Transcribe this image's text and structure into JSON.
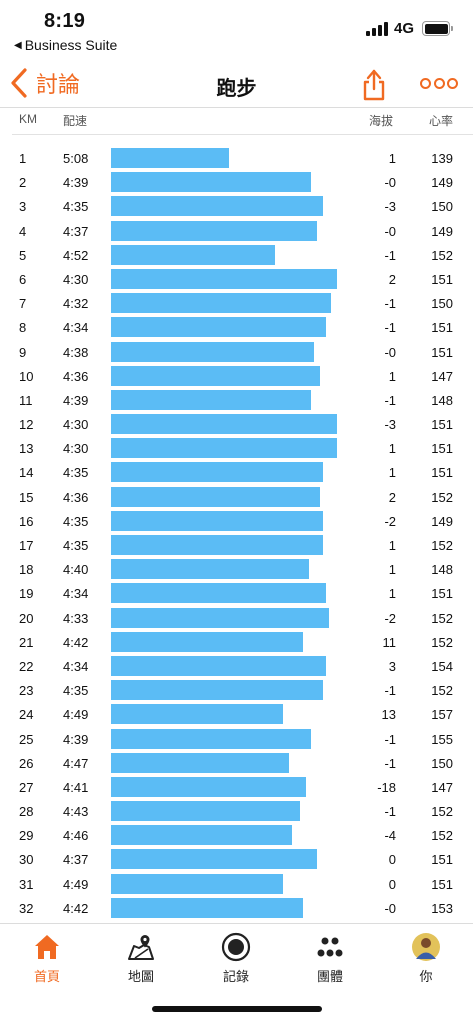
{
  "status_bar": {
    "time": "8:19",
    "back_app": "Business Suite",
    "network": "4G"
  },
  "nav": {
    "back_label": "討論",
    "title": "跑步"
  },
  "columns": {
    "km": "KM",
    "pace": "配速",
    "elevation": "海拔",
    "heart_rate": "心率"
  },
  "splits": [
    {
      "km": "1",
      "pace": "5:08",
      "elev": "1",
      "hr": "139"
    },
    {
      "km": "2",
      "pace": "4:39",
      "elev": "-0",
      "hr": "149"
    },
    {
      "km": "3",
      "pace": "4:35",
      "elev": "-3",
      "hr": "150"
    },
    {
      "km": "4",
      "pace": "4:37",
      "elev": "-0",
      "hr": "149"
    },
    {
      "km": "5",
      "pace": "4:52",
      "elev": "-1",
      "hr": "152"
    },
    {
      "km": "6",
      "pace": "4:30",
      "elev": "2",
      "hr": "151"
    },
    {
      "km": "7",
      "pace": "4:32",
      "elev": "-1",
      "hr": "150"
    },
    {
      "km": "8",
      "pace": "4:34",
      "elev": "-1",
      "hr": "151"
    },
    {
      "km": "9",
      "pace": "4:38",
      "elev": "-0",
      "hr": "151"
    },
    {
      "km": "10",
      "pace": "4:36",
      "elev": "1",
      "hr": "147"
    },
    {
      "km": "11",
      "pace": "4:39",
      "elev": "-1",
      "hr": "148"
    },
    {
      "km": "12",
      "pace": "4:30",
      "elev": "-3",
      "hr": "151"
    },
    {
      "km": "13",
      "pace": "4:30",
      "elev": "1",
      "hr": "151"
    },
    {
      "km": "14",
      "pace": "4:35",
      "elev": "1",
      "hr": "151"
    },
    {
      "km": "15",
      "pace": "4:36",
      "elev": "2",
      "hr": "152"
    },
    {
      "km": "16",
      "pace": "4:35",
      "elev": "-2",
      "hr": "149"
    },
    {
      "km": "17",
      "pace": "4:35",
      "elev": "1",
      "hr": "152"
    },
    {
      "km": "18",
      "pace": "4:40",
      "elev": "1",
      "hr": "148"
    },
    {
      "km": "19",
      "pace": "4:34",
      "elev": "1",
      "hr": "151"
    },
    {
      "km": "20",
      "pace": "4:33",
      "elev": "-2",
      "hr": "152"
    },
    {
      "km": "21",
      "pace": "4:42",
      "elev": "11",
      "hr": "152"
    },
    {
      "km": "22",
      "pace": "4:34",
      "elev": "3",
      "hr": "154"
    },
    {
      "km": "23",
      "pace": "4:35",
      "elev": "-1",
      "hr": "152"
    },
    {
      "km": "24",
      "pace": "4:49",
      "elev": "13",
      "hr": "157"
    },
    {
      "km": "25",
      "pace": "4:39",
      "elev": "-1",
      "hr": "155"
    },
    {
      "km": "26",
      "pace": "4:47",
      "elev": "-1",
      "hr": "150"
    },
    {
      "km": "27",
      "pace": "4:41",
      "elev": "-18",
      "hr": "147"
    },
    {
      "km": "28",
      "pace": "4:43",
      "elev": "-1",
      "hr": "152"
    },
    {
      "km": "29",
      "pace": "4:46",
      "elev": "-4",
      "hr": "152"
    },
    {
      "km": "30",
      "pace": "4:37",
      "elev": "0",
      "hr": "151"
    },
    {
      "km": "31",
      "pace": "4:49",
      "elev": "0",
      "hr": "151"
    },
    {
      "km": "32",
      "pace": "4:42",
      "elev": "-0",
      "hr": "153"
    }
  ],
  "colors": {
    "accent": "#f06a22",
    "bar": "#5bbcf5"
  },
  "tabs": [
    {
      "label": "首頁",
      "icon": "home-icon",
      "active": true
    },
    {
      "label": "地圖",
      "icon": "map-icon",
      "active": false
    },
    {
      "label": "記錄",
      "icon": "record-icon",
      "active": false
    },
    {
      "label": "團體",
      "icon": "groups-icon",
      "active": false
    },
    {
      "label": "你",
      "icon": "avatar",
      "active": false
    }
  ]
}
